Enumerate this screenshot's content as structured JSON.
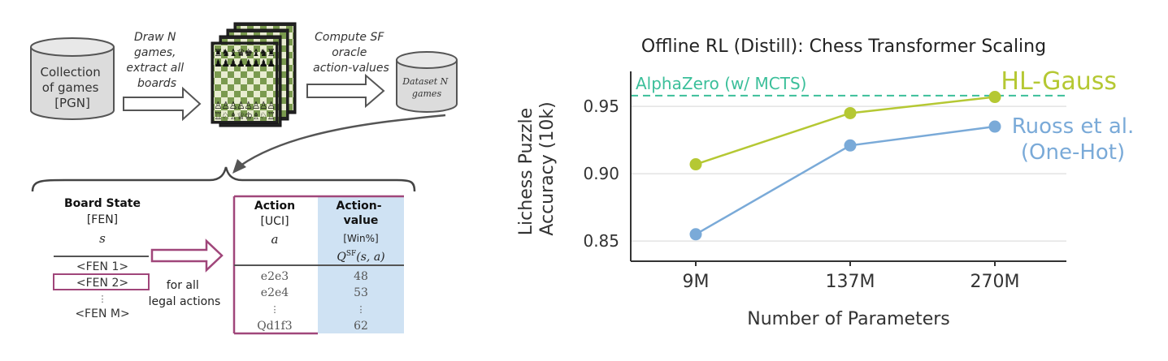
{
  "pipeline": {
    "collection_lines": [
      "Collection",
      "of games",
      "[PGN]"
    ],
    "step1_lines": [
      "Draw N",
      "games,",
      "extract all",
      "boards"
    ],
    "step2_lines": [
      "Compute SF",
      "oracle",
      "action-values"
    ],
    "dataset_lines": [
      "Dataset N",
      "games"
    ]
  },
  "table": {
    "board_state_header": "Board State",
    "board_state_sub": "[FEN]",
    "board_state_symbol": "s",
    "fen_rows": [
      "<FEN 1>",
      "<FEN 2>",
      "⋮",
      "<FEN M>"
    ],
    "arrow_caption_lines": [
      "for all",
      "legal actions"
    ],
    "action_header": "Action",
    "action_sub": "[UCI]",
    "action_symbol": "a",
    "value_header_lines": [
      "Action-",
      "value"
    ],
    "value_sub": "[Win%]",
    "value_symbol": "Q^SF(s, a)",
    "rows": [
      {
        "action": "e2e3",
        "value": "48"
      },
      {
        "action": "e2e4",
        "value": "53"
      },
      {
        "action": "⋮",
        "value": "⋮"
      },
      {
        "action": "Qd1f3",
        "value": "62"
      }
    ]
  },
  "chart_data": {
    "type": "line",
    "title": "Offline RL (Distill): Chess Transformer Scaling",
    "xlabel": "Number of Parameters",
    "ylabel_lines": [
      "Lichess Puzzle",
      "Accuracy (10k)"
    ],
    "categories": [
      "9M",
      "137M",
      "270M"
    ],
    "y_ticks": [
      "0.85",
      "0.90",
      "0.95"
    ],
    "ylim": [
      0.835,
      0.976
    ],
    "grid": "horizontal",
    "series": [
      {
        "name": "HL-Gauss",
        "values": [
          0.907,
          0.945,
          0.957
        ],
        "color": "#b5c833"
      },
      {
        "name_lines": [
          "Ruoss et al.",
          "(One-Hot)"
        ],
        "values": [
          0.855,
          0.921,
          0.935
        ],
        "color": "#7aaad8"
      }
    ],
    "reference_line": {
      "label": "AlphaZero (w/ MCTS)",
      "value": 0.958,
      "color": "#3bbf9a"
    }
  }
}
